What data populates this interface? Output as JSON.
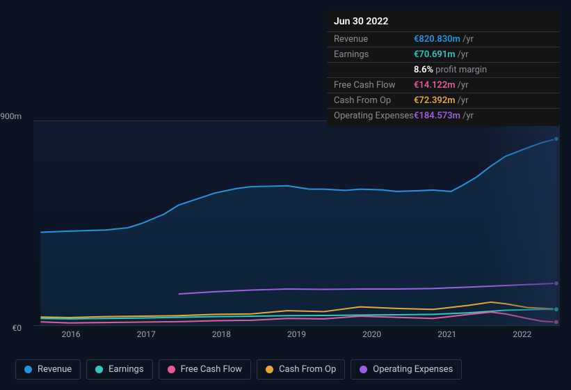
{
  "tooltip": {
    "date": "Jun 30 2022",
    "rows": [
      {
        "label": "Revenue",
        "value": "€820.830m",
        "suffix": "/yr",
        "color": "#2394df"
      },
      {
        "label": "Earnings",
        "value": "€70.691m",
        "suffix": "/yr",
        "color": "#2dc9c0"
      },
      {
        "label": "",
        "value": "8.6%",
        "suffix": "profit margin",
        "color": "#ffffff"
      },
      {
        "label": "Free Cash Flow",
        "value": "€14.122m",
        "suffix": "/yr",
        "color": "#e65a9c"
      },
      {
        "label": "Cash From Op",
        "value": "€72.392m",
        "suffix": "/yr",
        "color": "#e8a838"
      },
      {
        "label": "Operating Expenses",
        "value": "€184.573m",
        "suffix": "/yr",
        "color": "#9d5de5"
      }
    ]
  },
  "chart": {
    "type": "line",
    "background_color": "#0d1421",
    "grid_color": "#2a3142",
    "ylim": [
      0,
      900
    ],
    "ylabels": [
      {
        "text": "€900m",
        "y": 0
      },
      {
        "text": "€0",
        "y": 304
      }
    ],
    "xlabels": [
      "2016",
      "2017",
      "2018",
      "2019",
      "2020",
      "2021",
      "2022"
    ],
    "xrange": [
      2015.5,
      2022.75
    ],
    "series": [
      {
        "name": "Revenue",
        "color": "#2394df",
        "filled": true,
        "points": [
          [
            2015.6,
            410
          ],
          [
            2016.0,
            415
          ],
          [
            2016.5,
            420
          ],
          [
            2016.8,
            430
          ],
          [
            2017.0,
            450
          ],
          [
            2017.3,
            490
          ],
          [
            2017.5,
            530
          ],
          [
            2017.8,
            562
          ],
          [
            2018.0,
            583
          ],
          [
            2018.3,
            603
          ],
          [
            2018.5,
            611
          ],
          [
            2019.0,
            615
          ],
          [
            2019.3,
            600
          ],
          [
            2019.5,
            600
          ],
          [
            2019.8,
            595
          ],
          [
            2020.0,
            600
          ],
          [
            2020.3,
            597
          ],
          [
            2020.5,
            590
          ],
          [
            2020.8,
            593
          ],
          [
            2021.0,
            596
          ],
          [
            2021.25,
            590
          ],
          [
            2021.4,
            615
          ],
          [
            2021.6,
            653
          ],
          [
            2021.8,
            702
          ],
          [
            2022.0,
            745
          ],
          [
            2022.3,
            782
          ],
          [
            2022.5,
            805
          ],
          [
            2022.7,
            822
          ]
        ]
      },
      {
        "name": "Operating Expenses",
        "color": "#9d5de5",
        "filled": false,
        "points": [
          [
            2017.5,
            138
          ],
          [
            2018.0,
            148
          ],
          [
            2018.5,
            155
          ],
          [
            2019.0,
            160
          ],
          [
            2019.5,
            158
          ],
          [
            2020.0,
            160
          ],
          [
            2020.5,
            160
          ],
          [
            2021.0,
            162
          ],
          [
            2021.5,
            168
          ],
          [
            2022.0,
            175
          ],
          [
            2022.5,
            182
          ],
          [
            2022.7,
            185
          ]
        ]
      },
      {
        "name": "Cash From Op",
        "color": "#e8a838",
        "filled": false,
        "points": [
          [
            2015.6,
            36
          ],
          [
            2016.0,
            34
          ],
          [
            2016.5,
            38
          ],
          [
            2017.0,
            40
          ],
          [
            2017.5,
            42
          ],
          [
            2018.0,
            48
          ],
          [
            2018.5,
            50
          ],
          [
            2019.0,
            64
          ],
          [
            2019.5,
            60
          ],
          [
            2020.0,
            81
          ],
          [
            2020.5,
            74
          ],
          [
            2021.0,
            70
          ],
          [
            2021.5,
            88
          ],
          [
            2021.8,
            102
          ],
          [
            2022.0,
            95
          ],
          [
            2022.3,
            78
          ],
          [
            2022.5,
            75
          ],
          [
            2022.7,
            72
          ]
        ]
      },
      {
        "name": "Earnings",
        "color": "#2dc9c0",
        "filled": false,
        "points": [
          [
            2015.6,
            30
          ],
          [
            2016.0,
            28
          ],
          [
            2016.5,
            30
          ],
          [
            2017.0,
            32
          ],
          [
            2017.5,
            35
          ],
          [
            2018.0,
            38
          ],
          [
            2018.5,
            40
          ],
          [
            2019.0,
            42
          ],
          [
            2019.5,
            43
          ],
          [
            2020.0,
            45
          ],
          [
            2020.5,
            46
          ],
          [
            2021.0,
            48
          ],
          [
            2021.5,
            55
          ],
          [
            2022.0,
            66
          ],
          [
            2022.5,
            70
          ],
          [
            2022.7,
            70
          ]
        ]
      },
      {
        "name": "Free Cash Flow",
        "color": "#e65a9c",
        "filled": false,
        "points": [
          [
            2015.6,
            15
          ],
          [
            2016.0,
            10
          ],
          [
            2016.5,
            12
          ],
          [
            2017.0,
            14
          ],
          [
            2017.5,
            16
          ],
          [
            2018.0,
            20
          ],
          [
            2018.5,
            22
          ],
          [
            2019.0,
            30
          ],
          [
            2019.5,
            28
          ],
          [
            2020.0,
            40
          ],
          [
            2020.5,
            35
          ],
          [
            2021.0,
            30
          ],
          [
            2021.5,
            48
          ],
          [
            2021.8,
            58
          ],
          [
            2022.0,
            50
          ],
          [
            2022.3,
            30
          ],
          [
            2022.5,
            18
          ],
          [
            2022.7,
            14
          ]
        ]
      }
    ],
    "legend": [
      {
        "label": "Revenue",
        "color": "#2394df"
      },
      {
        "label": "Earnings",
        "color": "#2dc9c0"
      },
      {
        "label": "Free Cash Flow",
        "color": "#e65a9c"
      },
      {
        "label": "Cash From Op",
        "color": "#e8a838"
      },
      {
        "label": "Operating Expenses",
        "color": "#9d5de5"
      }
    ],
    "line_width": 2,
    "font_size": 12,
    "end_markers": true
  }
}
